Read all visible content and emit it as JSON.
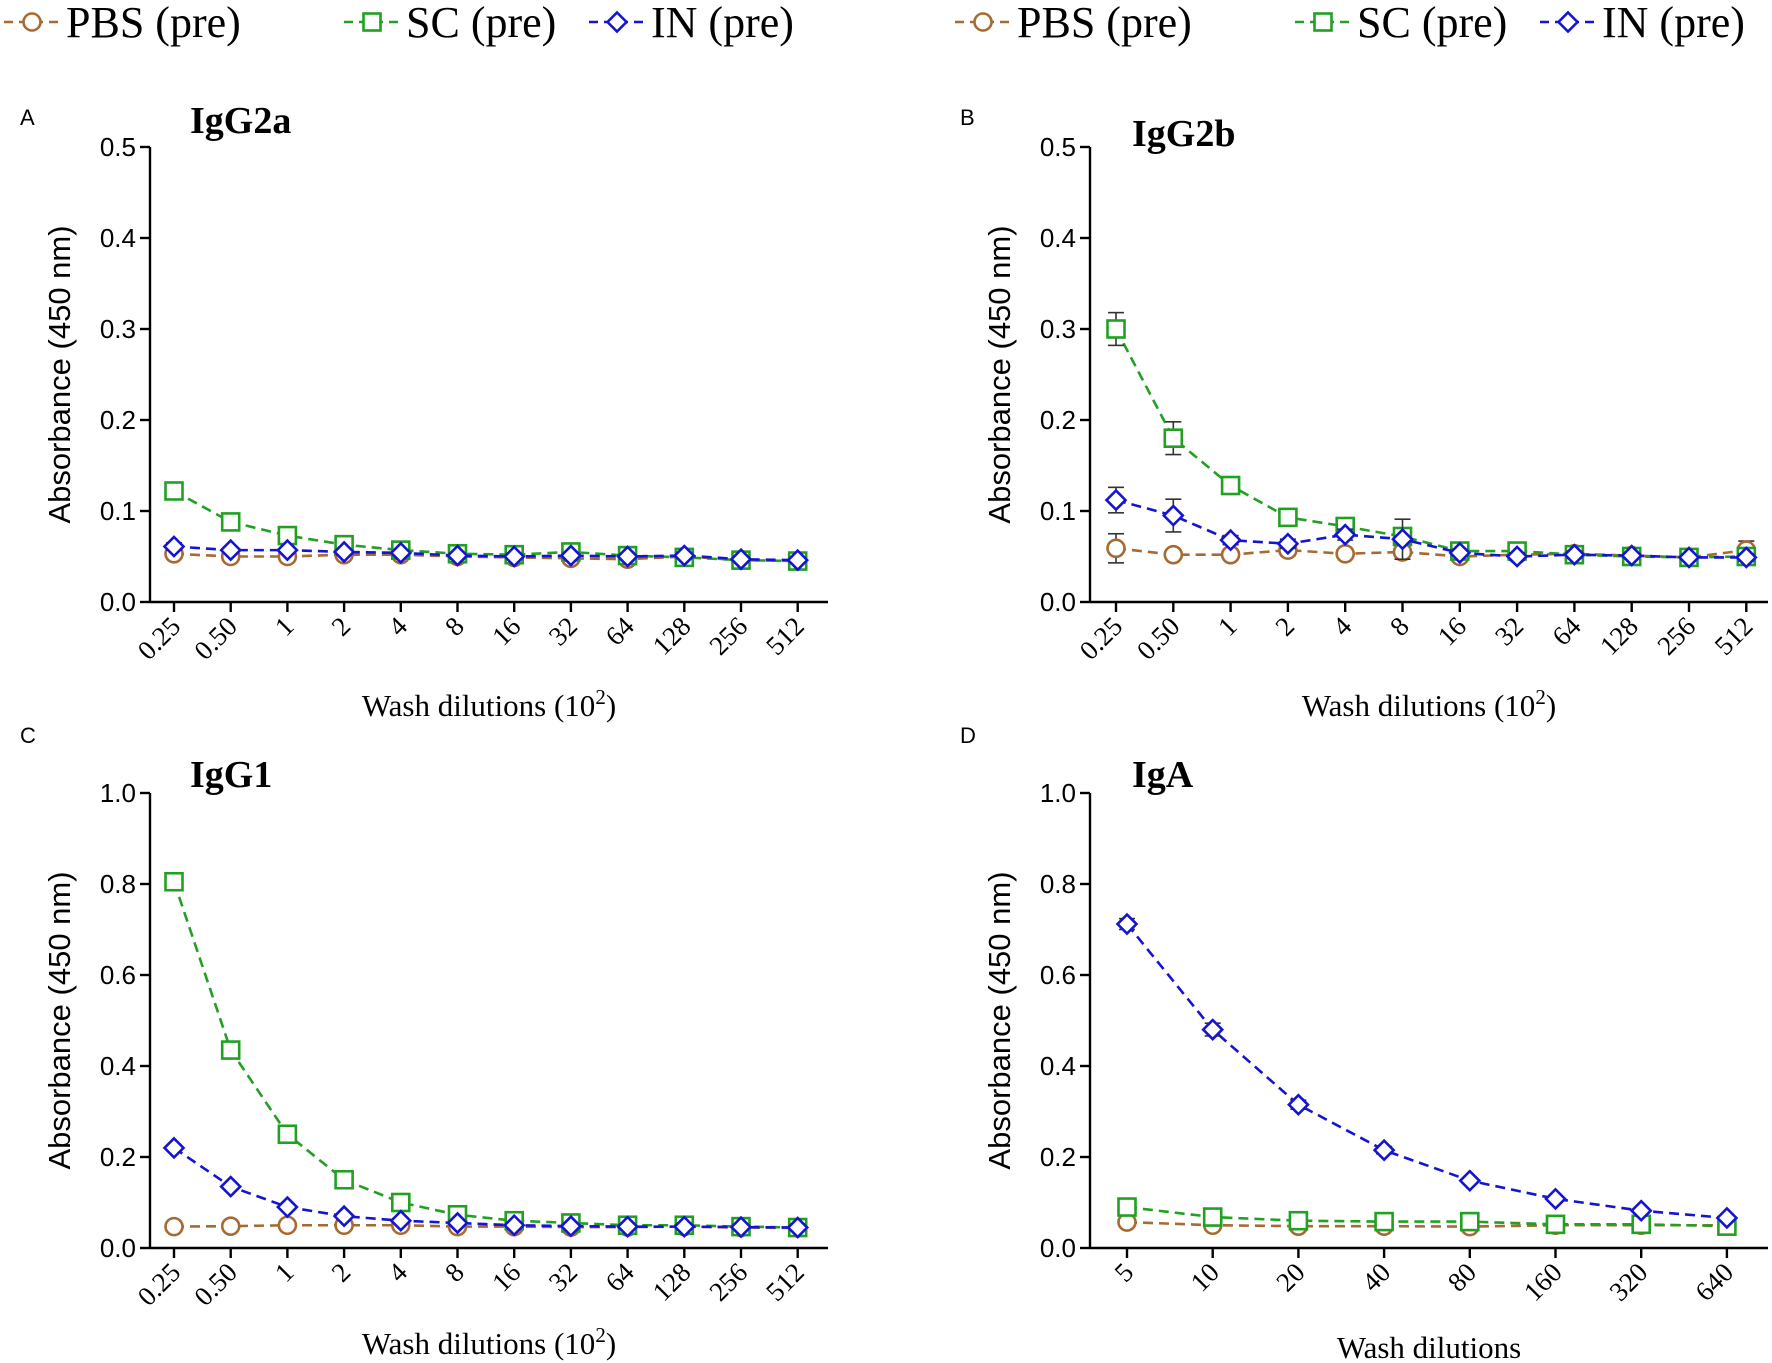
{
  "legend": [
    {
      "name": "PBS (pre)",
      "color": "#a86a32",
      "marker": "circle"
    },
    {
      "name": "SC (pre)",
      "color": "#22a022",
      "marker": "square"
    },
    {
      "name": "IN (pre)",
      "color": "#1414d2",
      "marker": "diamond"
    }
  ],
  "chart_data": [
    {
      "panel": "A",
      "type": "line",
      "title": "IgG2a",
      "xlabel": "Wash dilutions (10",
      "xlabel_sup": "2",
      "xlabel_close": ")",
      "ylabel": "Absorbance (450 nm)",
      "ylim": [
        0,
        0.5
      ],
      "yticks": [
        "0.0",
        "0.1",
        "0.2",
        "0.3",
        "0.4",
        "0.5"
      ],
      "categories": [
        "0.25",
        "0.50",
        "1",
        "2",
        "4",
        "8",
        "16",
        "32",
        "64",
        "128",
        "256",
        "512"
      ],
      "series": [
        {
          "name": "PBS (pre)",
          "values": [
            0.053,
            0.05,
            0.05,
            0.052,
            0.052,
            0.05,
            0.049,
            0.048,
            0.047,
            0.05,
            0.046,
            0.045
          ],
          "errors": [
            0.004,
            0.003,
            0.003,
            0.003,
            0.003,
            0.003,
            0.003,
            0.003,
            0.003,
            0.003,
            0.003,
            0.003
          ]
        },
        {
          "name": "SC (pre)",
          "values": [
            0.122,
            0.088,
            0.073,
            0.063,
            0.057,
            0.053,
            0.052,
            0.055,
            0.051,
            0.049,
            0.046,
            0.045
          ],
          "errors": [
            0.006,
            0.005,
            0.004,
            0.003,
            0.003,
            0.003,
            0.003,
            0.003,
            0.003,
            0.003,
            0.003,
            0.003
          ]
        },
        {
          "name": "IN (pre)",
          "values": [
            0.061,
            0.057,
            0.057,
            0.055,
            0.054,
            0.051,
            0.05,
            0.051,
            0.05,
            0.051,
            0.047,
            0.046
          ],
          "errors": [
            0.004,
            0.003,
            0.003,
            0.003,
            0.003,
            0.003,
            0.003,
            0.003,
            0.003,
            0.003,
            0.003,
            0.003
          ]
        }
      ]
    },
    {
      "panel": "B",
      "type": "line",
      "title": "IgG2b",
      "xlabel": "Wash dilutions (10",
      "xlabel_sup": "2",
      "xlabel_close": ")",
      "ylabel": "Absorbance (450 nm)",
      "ylim": [
        0,
        0.5
      ],
      "yticks": [
        "0.0",
        "0.1",
        "0.2",
        "0.3",
        "0.4",
        "0.5"
      ],
      "categories": [
        "0.25",
        "0.50",
        "1",
        "2",
        "4",
        "8",
        "16",
        "32",
        "64",
        "128",
        "256",
        "512"
      ],
      "series": [
        {
          "name": "PBS (pre)",
          "values": [
            0.059,
            0.052,
            0.052,
            0.057,
            0.053,
            0.055,
            0.05,
            0.052,
            0.053,
            0.051,
            0.049,
            0.057
          ],
          "errors": [
            0.016,
            0.004,
            0.004,
            0.006,
            0.004,
            0.005,
            0.004,
            0.004,
            0.004,
            0.003,
            0.003,
            0.01
          ]
        },
        {
          "name": "SC (pre)",
          "values": [
            0.3,
            0.18,
            0.128,
            0.093,
            0.083,
            0.072,
            0.056,
            0.056,
            0.052,
            0.05,
            0.049,
            0.05
          ],
          "errors": [
            0.018,
            0.018,
            0.008,
            0.008,
            0.005,
            0.005,
            0.004,
            0.004,
            0.004,
            0.003,
            0.003,
            0.004
          ]
        },
        {
          "name": "IN (pre)",
          "values": [
            0.112,
            0.095,
            0.068,
            0.064,
            0.074,
            0.069,
            0.054,
            0.05,
            0.052,
            0.051,
            0.049,
            0.049
          ],
          "errors": [
            0.014,
            0.018,
            0.005,
            0.005,
            0.006,
            0.022,
            0.004,
            0.004,
            0.004,
            0.003,
            0.003,
            0.004
          ]
        }
      ]
    },
    {
      "panel": "C",
      "type": "line",
      "title": "IgG1",
      "xlabel": "Wash dilutions (10",
      "xlabel_sup": "2",
      "xlabel_close": ")",
      "ylabel": "Absorbance (450 nm)",
      "ylim": [
        0,
        1.0
      ],
      "yticks": [
        "0.0",
        "0.2",
        "0.4",
        "0.6",
        "0.8",
        "1.0"
      ],
      "categories": [
        "0.25",
        "0.50",
        "1",
        "2",
        "4",
        "8",
        "16",
        "32",
        "64",
        "128",
        "256",
        "512"
      ],
      "series": [
        {
          "name": "PBS (pre)",
          "values": [
            0.047,
            0.048,
            0.05,
            0.05,
            0.05,
            0.047,
            0.047,
            0.046,
            0.046,
            0.047,
            0.045,
            0.044
          ],
          "errors": [
            0.004,
            0.004,
            0.004,
            0.004,
            0.004,
            0.004,
            0.003,
            0.003,
            0.003,
            0.003,
            0.003,
            0.003
          ]
        },
        {
          "name": "SC (pre)",
          "values": [
            0.805,
            0.435,
            0.25,
            0.15,
            0.1,
            0.073,
            0.06,
            0.055,
            0.05,
            0.05,
            0.047,
            0.045
          ],
          "errors": [
            0.012,
            0.014,
            0.01,
            0.008,
            0.005,
            0.004,
            0.004,
            0.004,
            0.003,
            0.003,
            0.003,
            0.003
          ]
        },
        {
          "name": "IN (pre)",
          "values": [
            0.22,
            0.135,
            0.09,
            0.07,
            0.06,
            0.055,
            0.05,
            0.048,
            0.047,
            0.047,
            0.046,
            0.045
          ],
          "errors": [
            0.006,
            0.005,
            0.004,
            0.004,
            0.004,
            0.004,
            0.003,
            0.003,
            0.003,
            0.003,
            0.003,
            0.003
          ]
        }
      ]
    },
    {
      "panel": "D",
      "type": "line",
      "title": "IgA",
      "xlabel": "Wash dilutions",
      "xlabel_sup": "",
      "xlabel_close": "",
      "ylabel": "Absorbance (450 nm)",
      "ylim": [
        0,
        1.0
      ],
      "yticks": [
        "0.0",
        "0.2",
        "0.4",
        "0.6",
        "0.8",
        "1.0"
      ],
      "categories": [
        "5",
        "10",
        "20",
        "40",
        "80",
        "160",
        "320",
        "640"
      ],
      "series": [
        {
          "name": "PBS (pre)",
          "values": [
            0.057,
            0.05,
            0.048,
            0.048,
            0.047,
            0.05,
            0.05,
            0.05
          ],
          "errors": [
            0.004,
            0.004,
            0.004,
            0.004,
            0.004,
            0.004,
            0.004,
            0.004
          ]
        },
        {
          "name": "SC (pre)",
          "values": [
            0.09,
            0.068,
            0.06,
            0.058,
            0.058,
            0.052,
            0.052,
            0.048
          ],
          "errors": [
            0.005,
            0.004,
            0.004,
            0.004,
            0.004,
            0.004,
            0.004,
            0.004
          ]
        },
        {
          "name": "IN (pre)",
          "values": [
            0.712,
            0.48,
            0.315,
            0.215,
            0.148,
            0.108,
            0.082,
            0.066
          ],
          "errors": [
            0.012,
            0.014,
            0.01,
            0.008,
            0.006,
            0.005,
            0.004,
            0.004
          ]
        }
      ]
    }
  ]
}
